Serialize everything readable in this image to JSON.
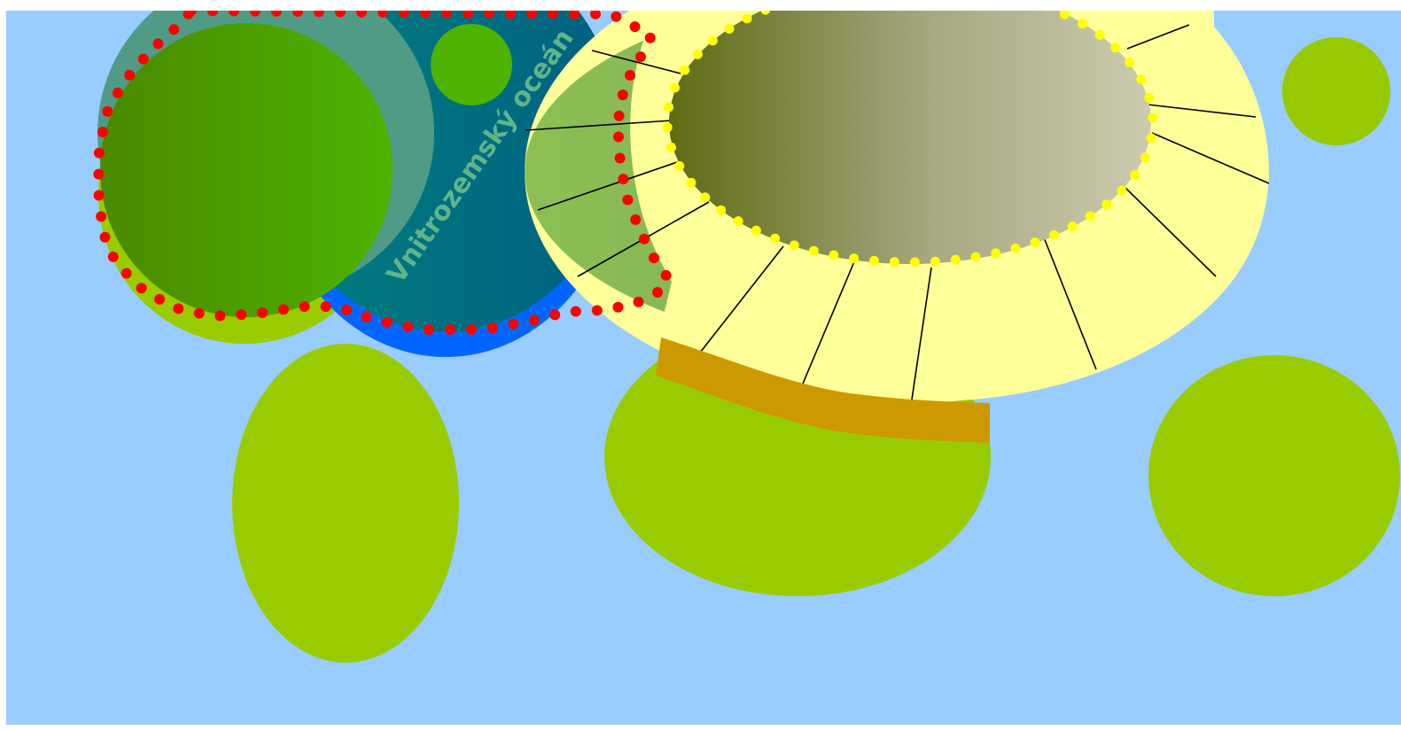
{
  "map": {
    "ocean_label": "Vnitrozemský oceán"
  },
  "colors": {
    "background": "#99ccff",
    "island_green": "#99cc00",
    "island_small": "#97c900",
    "deep_blue": "#0066ff",
    "ocean_teal_light": "#008080",
    "ocean_teal_dark": "#006080",
    "coast_green_light": "#8cbf55",
    "coast_green_dark": "#78a050",
    "forest_dark": "#4a8a00",
    "forest_light": "#4db300",
    "pale_island": "#ffff99",
    "plateau_dark": "#5f6b13",
    "plateau_light": "#cccbae",
    "ridge": "#cc9900",
    "red_border": "#ff0000",
    "yellow_border": "#ffff00",
    "ocean_label_color": "#5fb58a",
    "teal_rim": "#4f9b86"
  },
  "icons": {
    "dotted_border": "red-dotted-border",
    "plateau_border": "yellow-dotted-border"
  }
}
